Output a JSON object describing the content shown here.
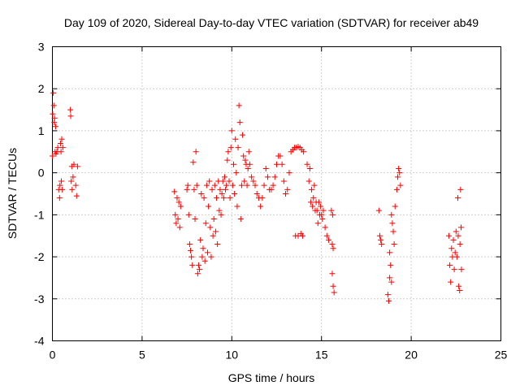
{
  "chart_data": {
    "type": "scatter",
    "title": "Day 109 of 2020, Sidereal Day-to-day VTEC variation (SDTVAR) for receiver ab49",
    "xlabel": "GPS time / hours",
    "ylabel": "SDTVAR / TECUs",
    "xlim": [
      0,
      25
    ],
    "ylim": [
      -4,
      3
    ],
    "xticks": [
      "0",
      "5",
      "10",
      "15",
      "20",
      "25"
    ],
    "yticks": [
      "3",
      "2",
      "1",
      "0",
      "-1",
      "-2",
      "-3",
      "-4"
    ],
    "grid": true,
    "marker": "+",
    "color": "#ff0000",
    "series": [
      {
        "name": "SDTVAR",
        "points": [
          [
            0.0,
            0.4
          ],
          [
            0.02,
            1.4
          ],
          [
            0.05,
            1.9
          ],
          [
            0.08,
            1.6
          ],
          [
            0.1,
            1.2
          ],
          [
            0.12,
            1.3
          ],
          [
            0.15,
            0.5
          ],
          [
            0.18,
            1.1
          ],
          [
            0.2,
            0.45
          ],
          [
            0.25,
            0.5
          ],
          [
            0.3,
            0.6
          ],
          [
            0.35,
            -0.4
          ],
          [
            0.4,
            -0.6
          ],
          [
            0.42,
            -0.3
          ],
          [
            0.45,
            0.7
          ],
          [
            0.48,
            0.5
          ],
          [
            0.5,
            -0.2
          ],
          [
            0.52,
            0.8
          ],
          [
            0.55,
            -0.4
          ],
          [
            0.58,
            0.6
          ],
          [
            1.0,
            1.5
          ],
          [
            1.02,
            1.35
          ],
          [
            1.05,
            -0.2
          ],
          [
            1.08,
            0.15
          ],
          [
            1.1,
            -0.4
          ],
          [
            1.15,
            -0.1
          ],
          [
            1.2,
            0.2
          ],
          [
            1.3,
            -0.3
          ],
          [
            1.35,
            -0.55
          ],
          [
            1.4,
            0.15
          ],
          [
            6.8,
            -0.45
          ],
          [
            6.85,
            -1.0
          ],
          [
            6.9,
            -1.2
          ],
          [
            6.95,
            -0.6
          ],
          [
            7.0,
            -1.1
          ],
          [
            7.05,
            -0.7
          ],
          [
            7.1,
            -1.3
          ],
          [
            7.15,
            -0.8
          ],
          [
            7.5,
            -0.4
          ],
          [
            7.55,
            -0.3
          ],
          [
            7.6,
            -1.0
          ],
          [
            7.65,
            -1.7
          ],
          [
            7.7,
            -1.85
          ],
          [
            7.75,
            -2.0
          ],
          [
            7.8,
            -2.2
          ],
          [
            7.85,
            0.25
          ],
          [
            7.9,
            -0.4
          ],
          [
            7.95,
            -1.1
          ],
          [
            8.0,
            0.5
          ],
          [
            8.05,
            -0.3
          ],
          [
            8.1,
            -2.4
          ],
          [
            8.15,
            -2.2
          ],
          [
            8.2,
            -2.3
          ],
          [
            8.25,
            -1.6
          ],
          [
            8.3,
            -0.5
          ],
          [
            8.35,
            -2.0
          ],
          [
            8.4,
            -1.8
          ],
          [
            8.45,
            -0.6
          ],
          [
            8.5,
            -2.1
          ],
          [
            8.55,
            -1.2
          ],
          [
            8.6,
            -0.3
          ],
          [
            8.65,
            -1.9
          ],
          [
            8.7,
            -0.8
          ],
          [
            8.75,
            -0.2
          ],
          [
            8.8,
            -1.3
          ],
          [
            8.85,
            -2.0
          ],
          [
            8.9,
            -0.4
          ],
          [
            8.95,
            -1.5
          ],
          [
            9.0,
            -1.1
          ],
          [
            9.05,
            -0.3
          ],
          [
            9.1,
            -1.4
          ],
          [
            9.15,
            -0.6
          ],
          [
            9.2,
            -1.7
          ],
          [
            9.25,
            -0.2
          ],
          [
            9.3,
            -0.9
          ],
          [
            9.35,
            -0.4
          ],
          [
            9.4,
            -1.0
          ],
          [
            9.45,
            -0.5
          ],
          [
            9.5,
            -0.2
          ],
          [
            9.55,
            -0.6
          ],
          [
            9.6,
            -0.1
          ],
          [
            9.65,
            -0.4
          ],
          [
            9.7,
            -0.3
          ],
          [
            9.75,
            0.3
          ],
          [
            9.8,
            0.5
          ],
          [
            9.85,
            -0.2
          ],
          [
            9.9,
            -0.6
          ],
          [
            9.95,
            0.6
          ],
          [
            10.0,
            1.0
          ],
          [
            10.05,
            -0.3
          ],
          [
            10.1,
            0.2
          ],
          [
            10.15,
            -0.5
          ],
          [
            10.2,
            0.8
          ],
          [
            10.25,
            0.0
          ],
          [
            10.3,
            -0.8
          ],
          [
            10.35,
            0.6
          ],
          [
            10.4,
            1.6
          ],
          [
            10.45,
            1.2
          ],
          [
            10.5,
            -1.1
          ],
          [
            10.55,
            -0.3
          ],
          [
            10.6,
            0.9
          ],
          [
            10.65,
            0.4
          ],
          [
            10.7,
            -0.2
          ],
          [
            10.75,
            0.3
          ],
          [
            10.8,
            0.2
          ],
          [
            10.85,
            -0.3
          ],
          [
            10.9,
            0.1
          ],
          [
            10.95,
            0.5
          ],
          [
            11.0,
            0.2
          ],
          [
            11.1,
            -0.1
          ],
          [
            11.2,
            -0.2
          ],
          [
            11.3,
            -0.3
          ],
          [
            11.4,
            -0.5
          ],
          [
            11.5,
            -0.6
          ],
          [
            11.6,
            -0.8
          ],
          [
            11.7,
            -0.6
          ],
          [
            11.8,
            -0.3
          ],
          [
            11.9,
            0.1
          ],
          [
            12.0,
            -0.1
          ],
          [
            12.1,
            -0.4
          ],
          [
            12.2,
            -0.4
          ],
          [
            12.3,
            -0.3
          ],
          [
            12.4,
            -0.1
          ],
          [
            12.5,
            0.2
          ],
          [
            12.6,
            0.4
          ],
          [
            12.7,
            0.4
          ],
          [
            12.8,
            0.2
          ],
          [
            12.9,
            -0.2
          ],
          [
            13.0,
            -0.5
          ],
          [
            13.1,
            -0.4
          ],
          [
            13.2,
            0.0
          ],
          [
            13.3,
            0.5
          ],
          [
            13.4,
            0.55
          ],
          [
            13.5,
            0.6
          ],
          [
            13.6,
            0.6
          ],
          [
            13.7,
            0.62
          ],
          [
            13.8,
            0.6
          ],
          [
            13.9,
            0.55
          ],
          [
            14.0,
            0.5
          ],
          [
            13.55,
            -1.5
          ],
          [
            13.7,
            -1.5
          ],
          [
            13.85,
            -1.45
          ],
          [
            13.95,
            -1.5
          ],
          [
            14.2,
            0.2
          ],
          [
            14.3,
            -0.2
          ],
          [
            14.35,
            0.1
          ],
          [
            14.4,
            -0.7
          ],
          [
            14.45,
            -0.4
          ],
          [
            14.5,
            -0.8
          ],
          [
            14.55,
            -0.6
          ],
          [
            14.6,
            -0.3
          ],
          [
            14.65,
            -0.9
          ],
          [
            14.7,
            -0.7
          ],
          [
            14.75,
            -0.9
          ],
          [
            14.8,
            -1.2
          ],
          [
            14.85,
            -0.7
          ],
          [
            14.9,
            -1.0
          ],
          [
            14.95,
            -0.8
          ],
          [
            15.0,
            -1.0
          ],
          [
            15.05,
            -1.1
          ],
          [
            15.1,
            -0.9
          ],
          [
            15.2,
            -1.3
          ],
          [
            15.3,
            -1.5
          ],
          [
            15.4,
            -1.6
          ],
          [
            15.6,
            -1.7
          ],
          [
            15.65,
            -1.8
          ],
          [
            15.55,
            -0.9
          ],
          [
            15.62,
            -1.0
          ],
          [
            15.6,
            -2.4
          ],
          [
            15.65,
            -2.7
          ],
          [
            15.7,
            -2.85
          ],
          [
            18.2,
            -0.9
          ],
          [
            18.25,
            -1.5
          ],
          [
            18.3,
            -1.6
          ],
          [
            18.35,
            -1.7
          ],
          [
            18.7,
            -2.9
          ],
          [
            18.75,
            -3.05
          ],
          [
            18.8,
            -2.5
          ],
          [
            18.85,
            -2.2
          ],
          [
            18.9,
            -1.0
          ],
          [
            18.95,
            -1.2
          ],
          [
            19.0,
            -1.4
          ],
          [
            19.05,
            -1.7
          ],
          [
            19.1,
            -0.8
          ],
          [
            18.8,
            -1.9
          ],
          [
            18.9,
            -2.6
          ],
          [
            19.2,
            -0.4
          ],
          [
            19.25,
            -0.1
          ],
          [
            19.3,
            0.1
          ],
          [
            19.35,
            0.0
          ],
          [
            19.4,
            -0.3
          ],
          [
            22.1,
            -1.5
          ],
          [
            22.15,
            -2.2
          ],
          [
            22.2,
            -2.6
          ],
          [
            22.25,
            -1.8
          ],
          [
            22.3,
            -2.0
          ],
          [
            22.35,
            -1.6
          ],
          [
            22.4,
            -2.3
          ],
          [
            22.45,
            -1.9
          ],
          [
            22.5,
            -1.4
          ],
          [
            22.55,
            -2.0
          ],
          [
            22.6,
            -0.6
          ],
          [
            22.62,
            -1.5
          ],
          [
            22.65,
            -2.7
          ],
          [
            22.7,
            -2.8
          ],
          [
            22.72,
            -1.7
          ],
          [
            22.75,
            -0.4
          ],
          [
            22.78,
            -1.3
          ],
          [
            22.8,
            -2.3
          ]
        ]
      }
    ]
  }
}
